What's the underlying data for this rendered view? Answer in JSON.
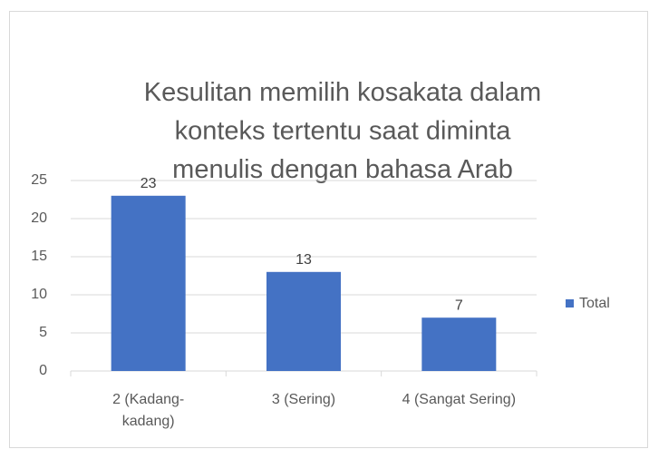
{
  "chart_data": {
    "type": "bar",
    "title": "Kesulitan memilih kosakata dalam konteks tertentu saat diminta menulis dengan bahasa Arab",
    "categories": [
      "2 (Kadang-kadang)",
      "3 (Sering)",
      "4 (Sangat Sering)"
    ],
    "series": [
      {
        "name": "Total",
        "color": "#4472c4",
        "values": [
          23,
          13,
          7
        ]
      }
    ],
    "ylim": [
      0,
      25
    ],
    "yticks": [
      0,
      5,
      10,
      15,
      20,
      25
    ],
    "grid": true,
    "legend": "right"
  }
}
